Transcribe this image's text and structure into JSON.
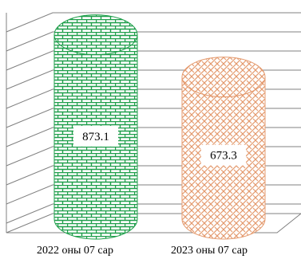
{
  "chart_data": {
    "type": "bar",
    "style": "3d-cylinder",
    "categories": [
      "2022 оны 07 сар",
      "2023 оны 07 сар"
    ],
    "values": [
      873.1,
      673.3
    ],
    "data_labels": [
      "873.1",
      "673.3"
    ],
    "title": "",
    "xlabel": "",
    "ylabel": "",
    "ylim": [
      0,
      1000
    ],
    "grid": true,
    "legend": "none",
    "colors": {
      "series_1_fill": "#ffffff",
      "series_1_pattern": "#1e9e4a",
      "series_2_fill": "#ffffff",
      "series_2_pattern": "#e49a6e",
      "grid": "#808080",
      "wall": "#ffffff"
    }
  }
}
